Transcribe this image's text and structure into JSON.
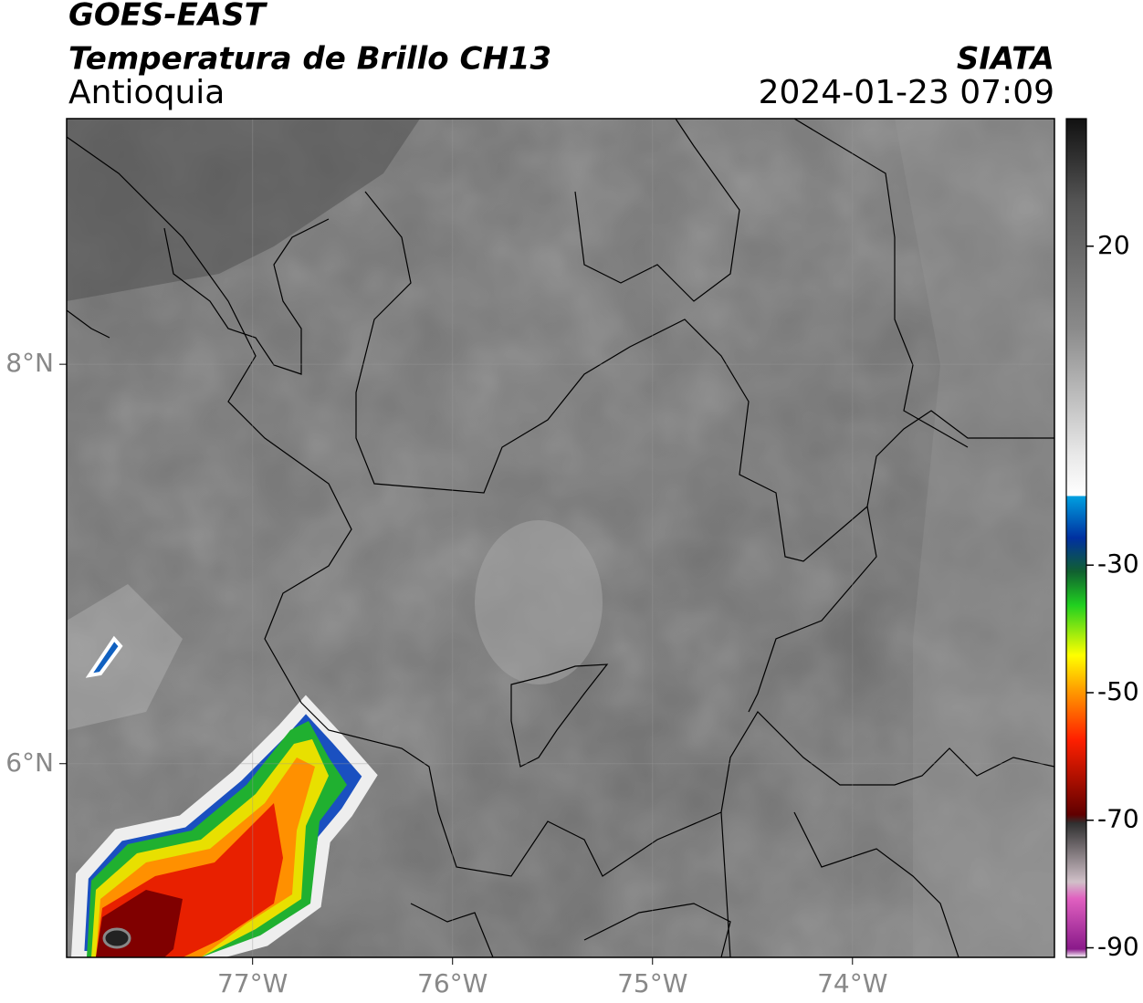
{
  "header": {
    "title": "GOES-EAST",
    "subtitle": "Temperatura de Brillo CH13",
    "region": "Antioquia",
    "source": "SIATA",
    "datetime": "2024-01-23 07:09"
  },
  "map": {
    "lonlim": [
      -77.93,
      -72.99
    ],
    "latlim": [
      5.03,
      9.23
    ],
    "lat_ticks": [
      {
        "value": 8,
        "label": "8°N"
      },
      {
        "value": 6,
        "label": "6°N"
      }
    ],
    "lon_ticks": [
      {
        "value": -77,
        "label": "77°W"
      },
      {
        "value": -76,
        "label": "76°W"
      },
      {
        "value": -75,
        "label": "75°W"
      },
      {
        "value": -74,
        "label": "74°W"
      }
    ],
    "grid": true
  },
  "colorbar": {
    "lim": [
      -91.5,
      40
    ],
    "ticks": [
      20,
      -30,
      -50,
      -70,
      -90
    ]
  }
}
